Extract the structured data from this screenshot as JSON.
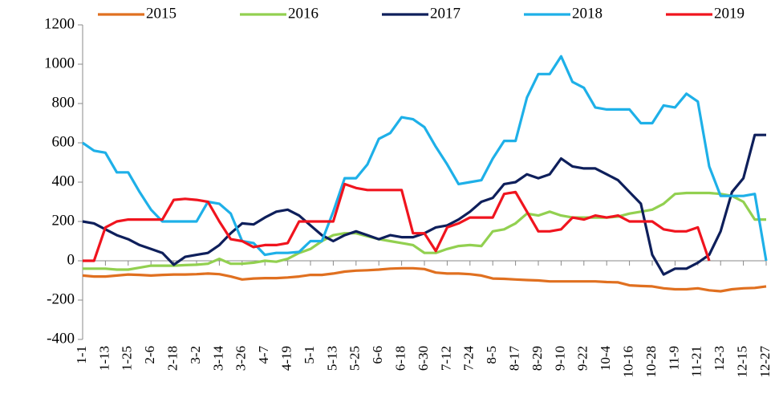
{
  "chart_data": {
    "type": "line",
    "categories": [
      "1-1",
      null,
      "1-13",
      null,
      "1-25",
      null,
      "2-6",
      null,
      "2-18",
      null,
      "3-2",
      null,
      "3-14",
      null,
      "3-26",
      null,
      "4-7",
      null,
      "4-19",
      null,
      "5-1",
      null,
      "5-13",
      null,
      "5-25",
      null,
      "6-6",
      null,
      "6-18",
      null,
      "6-30",
      null,
      "7-12",
      null,
      "7-24",
      null,
      "8-5",
      null,
      "8-17",
      null,
      "8-29",
      null,
      "9-10",
      null,
      "9-22",
      null,
      "10-4",
      null,
      "10-16",
      null,
      "10-28",
      null,
      "11-9",
      null,
      "11-21",
      null,
      "12-3",
      null,
      "12-15",
      null,
      "12-27"
    ],
    "series": [
      {
        "name": "2015",
        "color": "#e07020",
        "values": [
          -75,
          -80,
          -80,
          -75,
          -70,
          -72,
          -75,
          -72,
          -70,
          -70,
          -68,
          -65,
          -68,
          -80,
          -95,
          -90,
          -88,
          -88,
          -85,
          -80,
          -72,
          -72,
          -65,
          -55,
          -50,
          -48,
          -45,
          -40,
          -38,
          -38,
          -42,
          -60,
          -65,
          -65,
          -68,
          -75,
          -90,
          -92,
          -95,
          -98,
          -100,
          -105,
          -105,
          -105,
          -105,
          -105,
          -108,
          -110,
          -125,
          -128,
          -130,
          -140,
          -145,
          -145,
          -140,
          -150,
          -155,
          -145,
          -140,
          -138,
          -130
        ]
      },
      {
        "name": "2016",
        "color": "#92d050",
        "values": [
          -40,
          -40,
          -40,
          -45,
          -45,
          -35,
          -25,
          -25,
          -25,
          -22,
          -20,
          -15,
          10,
          -15,
          -15,
          -10,
          0,
          -5,
          10,
          40,
          60,
          100,
          130,
          140,
          140,
          125,
          110,
          100,
          90,
          80,
          40,
          40,
          60,
          75,
          80,
          75,
          150,
          160,
          190,
          240,
          230,
          250,
          230,
          220,
          220,
          220,
          220,
          225,
          240,
          250,
          260,
          290,
          340,
          345,
          345,
          345,
          340,
          330,
          300,
          210,
          210
        ]
      },
      {
        "name": "2017",
        "color": "#0e1f5b",
        "values": [
          200,
          190,
          160,
          130,
          110,
          80,
          60,
          40,
          -20,
          20,
          30,
          40,
          80,
          140,
          190,
          185,
          220,
          250,
          260,
          230,
          180,
          130,
          100,
          130,
          150,
          130,
          110,
          130,
          120,
          120,
          140,
          170,
          180,
          210,
          250,
          300,
          320,
          390,
          400,
          440,
          420,
          440,
          520,
          480,
          470,
          470,
          440,
          410,
          350,
          290,
          30,
          -70,
          -40,
          -40,
          -10,
          30,
          150,
          350,
          420,
          640,
          640
        ]
      },
      {
        "name": "2018",
        "color": "#1eb0e8",
        "values": [
          600,
          560,
          550,
          450,
          450,
          350,
          260,
          200,
          200,
          200,
          200,
          300,
          290,
          240,
          100,
          90,
          30,
          40,
          40,
          45,
          100,
          100,
          250,
          420,
          420,
          490,
          620,
          650,
          730,
          720,
          680,
          580,
          490,
          390,
          400,
          410,
          520,
          610,
          610,
          830,
          950,
          950,
          1040,
          910,
          880,
          780,
          770,
          770,
          770,
          700,
          700,
          790,
          780,
          850,
          810,
          480,
          330,
          330,
          330,
          340,
          0
        ]
      },
      {
        "name": "2019",
        "color": "#f0141e",
        "values": [
          0,
          0,
          170,
          200,
          210,
          210,
          210,
          210,
          310,
          315,
          310,
          300,
          200,
          110,
          100,
          70,
          80,
          80,
          90,
          200,
          200,
          200,
          200,
          390,
          370,
          360,
          360,
          360,
          360,
          140,
          140,
          50,
          170,
          190,
          220,
          220,
          220,
          340,
          350,
          250,
          150,
          150,
          160,
          220,
          210,
          230,
          220,
          230,
          200,
          200,
          200,
          160,
          150,
          150,
          170,
          0,
          null,
          null,
          null,
          null,
          null
        ]
      }
    ],
    "ylim": [
      -400,
      1200
    ],
    "yticks": [
      -400,
      -200,
      0,
      200,
      400,
      600,
      800,
      1000,
      1200
    ],
    "legend": "top"
  }
}
